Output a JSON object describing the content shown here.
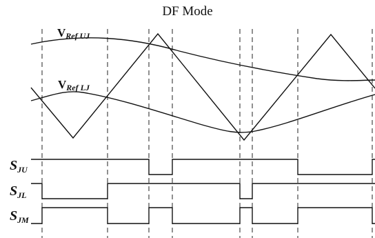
{
  "title": "DF Mode",
  "labels": {
    "vref_uj": {
      "main": "V",
      "sub": "Ref UJ"
    },
    "vref_lj": {
      "main": "V",
      "sub": "Ref LJ"
    },
    "s_ju": {
      "main": "S",
      "sub": "JU"
    },
    "s_jl": {
      "main": "S",
      "sub": "JL"
    },
    "s_jm": {
      "main": "S",
      "sub": "JM"
    }
  }
}
